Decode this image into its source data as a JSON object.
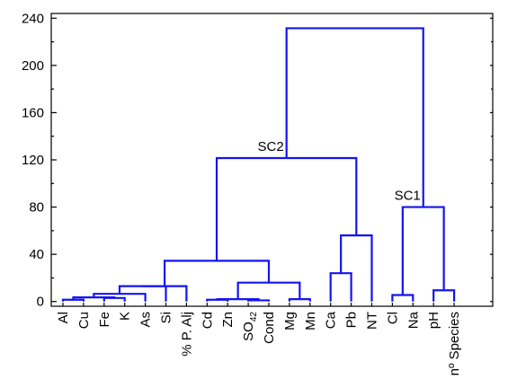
{
  "chart_data": {
    "type": "dendrogram",
    "y_ticks": [
      "0",
      "40",
      "80",
      "120",
      "160",
      "200",
      "240"
    ],
    "ylim": [
      -4,
      244
    ],
    "leaves": [
      "Al",
      "Cu",
      "Fe",
      "K",
      "As",
      "Si",
      "% P. Alj",
      "Cd",
      "Zn",
      "SO42",
      "Cond",
      "Mg",
      "Mn",
      "Ca",
      "Pb",
      "NT",
      "Cl",
      "Na",
      "pH",
      "nº Species"
    ],
    "leaf_display": {
      "SO42": {
        "base": "SO",
        "sub": "42"
      }
    },
    "merges": [
      {
        "left": "Al",
        "right": "Cu",
        "height": 1.5
      },
      {
        "left": "Fe",
        "right": "K",
        "height": 3.0
      },
      {
        "left": [
          "Al",
          "Cu"
        ],
        "right": [
          "Fe",
          "K"
        ],
        "height": 3.5
      },
      {
        "left": [
          "Al",
          "Cu",
          "Fe",
          "K"
        ],
        "right": "As",
        "height": 6.5
      },
      {
        "left": [
          "Al",
          "Cu",
          "Fe",
          "K",
          "As"
        ],
        "right": "Si",
        "height": 13.0
      },
      {
        "left": "Cd",
        "right": "Zn",
        "height": 1.5
      },
      {
        "left": "SO42",
        "right": "Cond",
        "height": 1.0
      },
      {
        "left": [
          "Cd",
          "Zn"
        ],
        "right": [
          "SO42",
          "Cond"
        ],
        "height": 2.0
      },
      {
        "left": "Mg",
        "right": "Mn",
        "height": 2.0
      },
      {
        "left": [
          "Cd",
          "Zn",
          "SO42",
          "Cond"
        ],
        "right": [
          "Mg",
          "Mn"
        ],
        "height": 16.0
      },
      {
        "left": [
          "Al",
          "Cu",
          "Fe",
          "K",
          "As",
          "Si"
        ],
        "right": "% P. Alj",
        "height": 13.0
      },
      {
        "left": [
          "Al",
          "Cu",
          "Fe",
          "K",
          "As",
          "Si",
          "% P. Alj"
        ],
        "right": [
          "Cd",
          "Zn",
          "SO42",
          "Cond",
          "Mg",
          "Mn"
        ],
        "height": 34.5
      },
      {
        "left": "Ca",
        "right": "Pb",
        "height": 24.0
      },
      {
        "left": [
          "Ca",
          "Pb"
        ],
        "right": "NT",
        "height": 56.0
      },
      {
        "left": [
          "Al",
          "Cu",
          "Fe",
          "K",
          "As",
          "Si",
          "% P. Alj",
          "Cd",
          "Zn",
          "SO42",
          "Cond",
          "Mg",
          "Mn"
        ],
        "right": [
          "Ca",
          "Pb",
          "NT"
        ],
        "height": 121.5,
        "label": "SC2"
      },
      {
        "left": "Cl",
        "right": "Na",
        "height": 5.5
      },
      {
        "left": "pH",
        "right": "nº Species",
        "height": 9.5
      },
      {
        "left": [
          "Cl",
          "Na"
        ],
        "right": [
          "pH",
          "nº Species"
        ],
        "height": 80.0,
        "label": "SC1"
      },
      {
        "left": "SC2",
        "right": "SC1",
        "height": 231.5
      }
    ],
    "cluster_labels": [
      "SC2",
      "SC1"
    ],
    "grid": false,
    "legend": "none"
  }
}
